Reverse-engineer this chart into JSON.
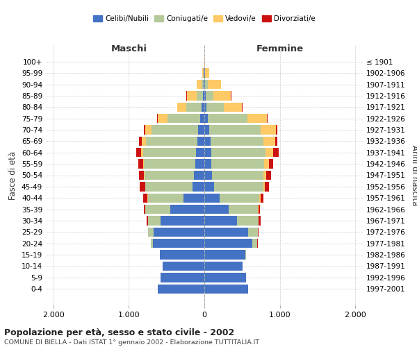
{
  "age_groups": [
    "0-4",
    "5-9",
    "10-14",
    "15-19",
    "20-24",
    "25-29",
    "30-34",
    "35-39",
    "40-44",
    "45-49",
    "50-54",
    "55-59",
    "60-64",
    "65-69",
    "70-74",
    "75-79",
    "80-84",
    "85-89",
    "90-94",
    "95-99",
    "100+"
  ],
  "birth_years": [
    "1997-2001",
    "1992-1996",
    "1987-1991",
    "1982-1986",
    "1977-1981",
    "1972-1976",
    "1967-1971",
    "1962-1966",
    "1957-1961",
    "1952-1956",
    "1947-1951",
    "1942-1946",
    "1937-1941",
    "1932-1936",
    "1927-1931",
    "1922-1926",
    "1917-1921",
    "1912-1916",
    "1907-1911",
    "1902-1906",
    "≤ 1901"
  ],
  "colors": {
    "celibi": "#4472c4",
    "coniugati": "#b5c99a",
    "vedovi": "#ffc966",
    "divorziati": "#cc1111"
  },
  "maschi": {
    "celibi": [
      620,
      580,
      550,
      590,
      680,
      670,
      580,
      450,
      280,
      160,
      140,
      120,
      110,
      95,
      80,
      55,
      35,
      20,
      10,
      5,
      2
    ],
    "coniugati": [
      0,
      0,
      0,
      0,
      30,
      80,
      170,
      330,
      470,
      620,
      650,
      680,
      700,
      680,
      620,
      430,
      200,
      80,
      25,
      5,
      0
    ],
    "vedovi": [
      0,
      0,
      0,
      0,
      0,
      0,
      0,
      0,
      5,
      5,
      10,
      15,
      30,
      50,
      80,
      130,
      120,
      130,
      70,
      20,
      0
    ],
    "divorziati": [
      0,
      0,
      0,
      0,
      0,
      0,
      15,
      20,
      60,
      70,
      70,
      60,
      60,
      40,
      20,
      10,
      5,
      5,
      0,
      0,
      0
    ]
  },
  "femmine": {
    "celibi": [
      580,
      550,
      510,
      540,
      640,
      580,
      430,
      320,
      200,
      130,
      100,
      95,
      90,
      80,
      65,
      45,
      30,
      20,
      12,
      5,
      2
    ],
    "coniugati": [
      0,
      0,
      0,
      10,
      60,
      130,
      290,
      390,
      530,
      650,
      680,
      700,
      720,
      700,
      680,
      530,
      230,
      100,
      35,
      8,
      0
    ],
    "vedovi": [
      0,
      0,
      0,
      0,
      0,
      0,
      0,
      5,
      15,
      20,
      40,
      60,
      100,
      160,
      200,
      250,
      240,
      230,
      170,
      50,
      5
    ],
    "divorziati": [
      0,
      0,
      0,
      0,
      5,
      5,
      25,
      25,
      40,
      55,
      60,
      55,
      80,
      30,
      20,
      15,
      5,
      5,
      0,
      0,
      0
    ]
  },
  "xlim": 2100,
  "xticks": [
    -2000,
    -1000,
    0,
    1000,
    2000
  ],
  "xticklabels": [
    "2.000",
    "1.000",
    "0",
    "1.000",
    "2.000"
  ],
  "title": "Popolazione per età, sesso e stato civile - 2002",
  "subtitle": "COMUNE DI BIELLA - Dati ISTAT 1° gennaio 2002 - Elaborazione TUTTITALIA.IT",
  "ylabel_left": "Fasce di età",
  "ylabel_right": "Anni di nascita",
  "header_maschi": "Maschi",
  "header_femmine": "Femmine",
  "legend_labels": [
    "Celibi/Nubili",
    "Coniugati/e",
    "Vedovi/e",
    "Divorziati/e"
  ],
  "background_color": "#ffffff",
  "grid_color": "#cccccc"
}
